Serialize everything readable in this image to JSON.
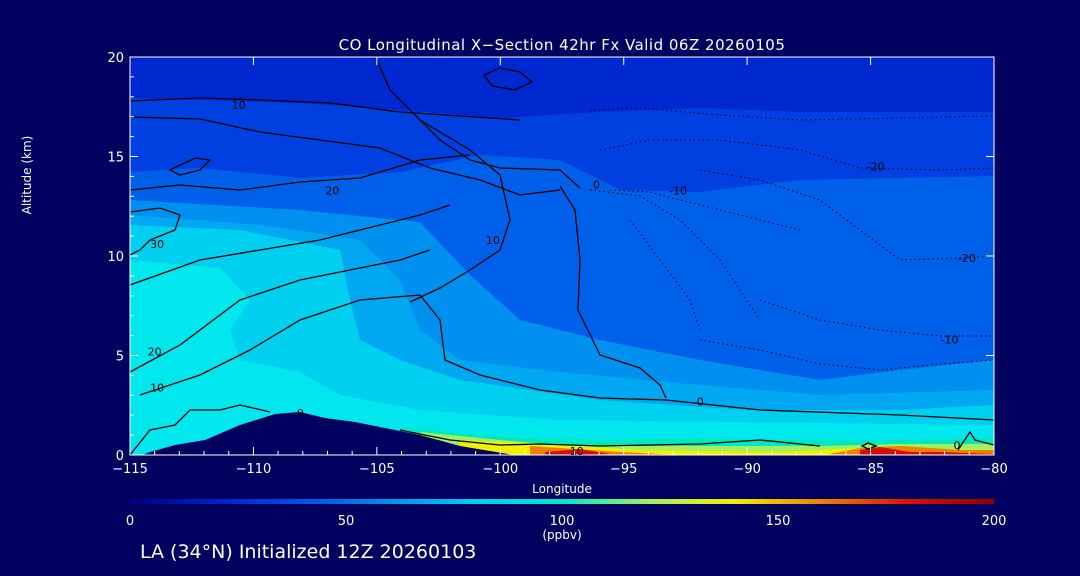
{
  "chart_data": {
    "type": "heatmap",
    "title": "CO Longitudinal X−Section 42hr  Fx Valid 06Z 20260105",
    "xlabel": "Longitude",
    "ylabel": "Altitude (km)",
    "xlim": [
      -115,
      -80
    ],
    "ylim": [
      0,
      20
    ],
    "x_ticks": [
      -115,
      -110,
      -105,
      -100,
      -95,
      -90,
      -85,
      -80
    ],
    "x_tick_labels": [
      "−115",
      "−110",
      "−105",
      "−100",
      "−95",
      "−90",
      "−85",
      "−80"
    ],
    "y_ticks": [
      0,
      5,
      10,
      15,
      20
    ],
    "y_tick_labels": [
      "0",
      "5",
      "10",
      "15",
      "20"
    ],
    "colorbar": {
      "min": 0,
      "max": 200,
      "ticks": [
        0,
        50,
        100,
        150,
        200
      ],
      "tick_labels": [
        "0",
        "50",
        "100",
        "150",
        "200"
      ],
      "unit": "(ppbv)",
      "colormap": [
        "#00007c",
        "#0020c8",
        "#0050e8",
        "#0090f0",
        "#00d0f0",
        "#00e8d0",
        "#a0f060",
        "#f0f000",
        "#f08000",
        "#e01000",
        "#8c0000"
      ]
    },
    "contour_labels": [
      {
        "text": "10",
        "lon": -110.6,
        "alt": 17.6
      },
      {
        "text": "20",
        "lon": -106.8,
        "alt": 13.3
      },
      {
        "text": "30",
        "lon": -113.9,
        "alt": 10.6
      },
      {
        "text": "20",
        "lon": -114.0,
        "alt": 5.2
      },
      {
        "text": "10",
        "lon": -113.9,
        "alt": 3.4
      },
      {
        "text": "0",
        "lon": -108.1,
        "alt": 2.1
      },
      {
        "text": "10",
        "lon": -100.3,
        "alt": 10.8
      },
      {
        "text": "0",
        "lon": -96.1,
        "alt": 13.6
      },
      {
        "text": "-10",
        "lon": -92.8,
        "alt": 13.3
      },
      {
        "text": "0",
        "lon": -91.9,
        "alt": 2.7
      },
      {
        "text": "-20",
        "lon": -84.8,
        "alt": 14.5
      },
      {
        "text": "-20",
        "lon": -81.1,
        "alt": 9.9
      },
      {
        "text": "-10",
        "lon": -81.8,
        "alt": 5.8
      },
      {
        "text": "10",
        "lon": -96.9,
        "alt": 0.2
      },
      {
        "text": "0",
        "lon": -81.5,
        "alt": 0.5
      }
    ],
    "grid": false
  },
  "footer": "LA (34°N) Initialized 12Z 20260103"
}
